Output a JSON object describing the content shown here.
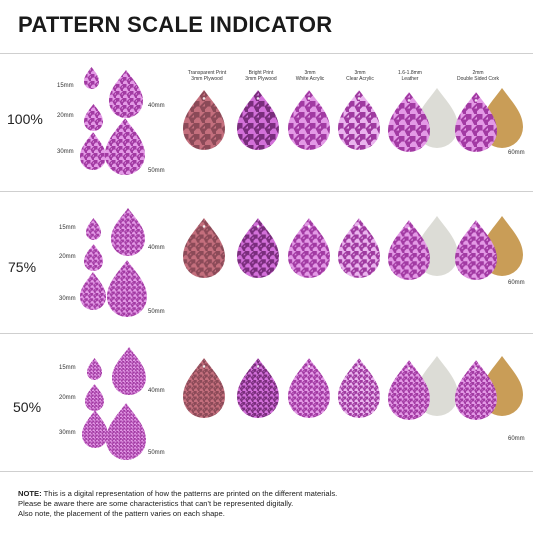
{
  "title": "PATTERN SCALE INDICATOR",
  "colors": {
    "pattern_light": "#e39ae6",
    "pattern_dark": "#a23aa3",
    "plywood_dark": "#8b4a58",
    "plywood_light": "#c46f7d",
    "leather": "#dcdcd6",
    "cork": "#c99d57"
  },
  "materials": [
    {
      "line1": "Transparent Print",
      "line2": "3mm Plywood"
    },
    {
      "line1": "Bright Print",
      "line2": "3mm Plywood"
    },
    {
      "line1": "3mm",
      "line2": "White Acrylic"
    },
    {
      "line1": "3mm",
      "line2": "Clear Acrylic"
    },
    {
      "line1": "1.6-1.8mm",
      "line2": "Leather"
    },
    {
      "line1": "2mm",
      "line2": "Double Sided Cork"
    }
  ],
  "sizes": {
    "s15": "15mm",
    "s20": "20mm",
    "s30": "30mm",
    "s40": "40mm",
    "s50": "50mm",
    "s60": "60mm"
  },
  "scales": [
    {
      "label": "100%",
      "pattern_size": 1.0
    },
    {
      "label": "75%",
      "pattern_size": 0.75
    },
    {
      "label": "50%",
      "pattern_size": 0.5
    }
  ],
  "note": {
    "bold": "NOTE:",
    "line1": " This is a digital representation of how the patterns are printed on the different materials.",
    "line2": "Please be aware there are some characteristics that can't be represented digitally.",
    "line3": "Also note, the placement of the pattern varies on each shape."
  }
}
